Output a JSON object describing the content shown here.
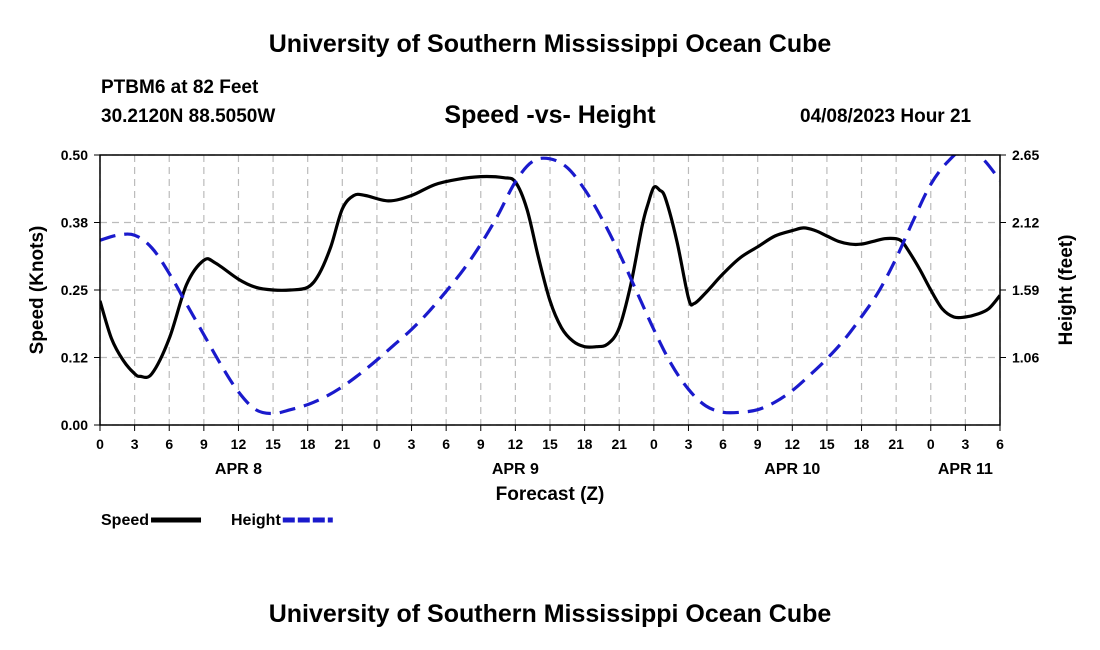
{
  "header": {
    "title": "University of Southern Mississippi Ocean Cube",
    "station": "PTBM6 at 82 Feet",
    "coordinates": "30.2120N  88.5050W",
    "subtitle": "Speed -vs- Height",
    "datetime": "04/08/2023 Hour 21"
  },
  "footer": {
    "title": "University of Southern Mississippi Ocean Cube"
  },
  "colors": {
    "speed": "#000000",
    "height": "#1a1acc",
    "grid": "#bbbbbb"
  },
  "chart_data": {
    "type": "line",
    "title": "Speed -vs- Height",
    "xlabel": "Forecast (Z)",
    "ylabel_left": "Speed (Knots)",
    "ylabel_right": "Height (feet)",
    "x_unit": "forecast hours from 04/08 00Z",
    "xlim": [
      0,
      78
    ],
    "ylim_left": [
      0,
      0.5
    ],
    "ylim_right": [
      0.53,
      2.65
    ],
    "y_ticks_left": [
      {
        "value": 0,
        "label": "0.00"
      },
      {
        "value": 0.125,
        "label": "0.12"
      },
      {
        "value": 0.25,
        "label": "0.25"
      },
      {
        "value": 0.375,
        "label": "0.38"
      },
      {
        "value": 0.5,
        "label": "0.50"
      }
    ],
    "y_ticks_right": [
      {
        "value": 1.06,
        "label": "1.06"
      },
      {
        "value": 1.59,
        "label": "1.59"
      },
      {
        "value": 2.12,
        "label": "2.12"
      },
      {
        "value": 2.65,
        "label": "2.65"
      }
    ],
    "x_ticks": [
      {
        "x": 0,
        "label": "0"
      },
      {
        "x": 3,
        "label": "3"
      },
      {
        "x": 6,
        "label": "6"
      },
      {
        "x": 9,
        "label": "9"
      },
      {
        "x": 12,
        "label": "12"
      },
      {
        "x": 15,
        "label": "15"
      },
      {
        "x": 18,
        "label": "18"
      },
      {
        "x": 21,
        "label": "21"
      },
      {
        "x": 24,
        "label": "0"
      },
      {
        "x": 27,
        "label": "3"
      },
      {
        "x": 30,
        "label": "6"
      },
      {
        "x": 33,
        "label": "9"
      },
      {
        "x": 36,
        "label": "12"
      },
      {
        "x": 39,
        "label": "15"
      },
      {
        "x": 42,
        "label": "18"
      },
      {
        "x": 45,
        "label": "21"
      },
      {
        "x": 48,
        "label": "0"
      },
      {
        "x": 51,
        "label": "3"
      },
      {
        "x": 54,
        "label": "6"
      },
      {
        "x": 57,
        "label": "9"
      },
      {
        "x": 60,
        "label": "12"
      },
      {
        "x": 63,
        "label": "15"
      },
      {
        "x": 66,
        "label": "18"
      },
      {
        "x": 69,
        "label": "21"
      },
      {
        "x": 72,
        "label": "0"
      },
      {
        "x": 75,
        "label": "3"
      },
      {
        "x": 78,
        "label": "6"
      }
    ],
    "day_labels": [
      {
        "x": 12,
        "label": "APR 8"
      },
      {
        "x": 36,
        "label": "APR 9"
      },
      {
        "x": 60,
        "label": "APR 10"
      },
      {
        "x": 75,
        "label": "APR 11"
      }
    ],
    "legend": [
      {
        "name": "Speed",
        "style": "solid"
      },
      {
        "name": "Height",
        "style": "dashed"
      }
    ],
    "series": [
      {
        "name": "Speed",
        "axis": "left",
        "style": "solid",
        "x": [
          0,
          1,
          2,
          3,
          3.5,
          4.5,
          6,
          7.5,
          9,
          10,
          12,
          13.5,
          15,
          16.5,
          18,
          19,
          20,
          21,
          22,
          23,
          25,
          27,
          29,
          31,
          33,
          35,
          36,
          37,
          38,
          39,
          40,
          41,
          42,
          43,
          44,
          45,
          46,
          47,
          47.5,
          48,
          48.5,
          49,
          50,
          51,
          51.5,
          52.5,
          54,
          55.5,
          57,
          58.5,
          60,
          61,
          62,
          63,
          64,
          65,
          66,
          67,
          68,
          69,
          69.5,
          70,
          71,
          72,
          73,
          74,
          75,
          76,
          77,
          78
        ],
        "values": [
          0.23,
          0.16,
          0.12,
          0.095,
          0.09,
          0.095,
          0.16,
          0.26,
          0.305,
          0.3,
          0.27,
          0.255,
          0.25,
          0.25,
          0.255,
          0.28,
          0.33,
          0.4,
          0.425,
          0.425,
          0.415,
          0.425,
          0.445,
          0.455,
          0.46,
          0.458,
          0.45,
          0.4,
          0.31,
          0.23,
          0.18,
          0.155,
          0.145,
          0.145,
          0.15,
          0.18,
          0.26,
          0.37,
          0.41,
          0.44,
          0.435,
          0.42,
          0.34,
          0.235,
          0.225,
          0.245,
          0.28,
          0.31,
          0.33,
          0.35,
          0.36,
          0.365,
          0.36,
          0.35,
          0.34,
          0.335,
          0.335,
          0.34,
          0.345,
          0.345,
          0.34,
          0.325,
          0.29,
          0.25,
          0.215,
          0.2,
          0.2,
          0.205,
          0.215,
          0.24
        ]
      },
      {
        "name": "Height",
        "axis": "right",
        "style": "dashed",
        "x": [
          0,
          1.5,
          3,
          4.5,
          6,
          7.5,
          9,
          10.5,
          12,
          13.5,
          15,
          16.5,
          18,
          19.5,
          21,
          22.5,
          24,
          25.5,
          27,
          28.5,
          30,
          31.5,
          33,
          34.5,
          36,
          37.5,
          39,
          40.5,
          42,
          43.5,
          45,
          46.5,
          48,
          49.5,
          51,
          52.5,
          54,
          55.5,
          57,
          58.5,
          60,
          61.5,
          63,
          64.5,
          66,
          67.5,
          69,
          70.5,
          72,
          73.5,
          75,
          76.5,
          78
        ],
        "values": [
          1.98,
          2.02,
          2.02,
          1.92,
          1.72,
          1.48,
          1.24,
          1.0,
          0.79,
          0.65,
          0.62,
          0.65,
          0.69,
          0.75,
          0.83,
          0.93,
          1.04,
          1.16,
          1.28,
          1.42,
          1.58,
          1.75,
          1.95,
          2.18,
          2.44,
          2.6,
          2.62,
          2.55,
          2.38,
          2.15,
          1.88,
          1.58,
          1.28,
          1.01,
          0.81,
          0.68,
          0.63,
          0.63,
          0.65,
          0.71,
          0.8,
          0.92,
          1.05,
          1.2,
          1.38,
          1.58,
          1.84,
          2.14,
          2.42,
          2.6,
          2.7,
          2.62,
          2.45
        ]
      }
    ]
  }
}
